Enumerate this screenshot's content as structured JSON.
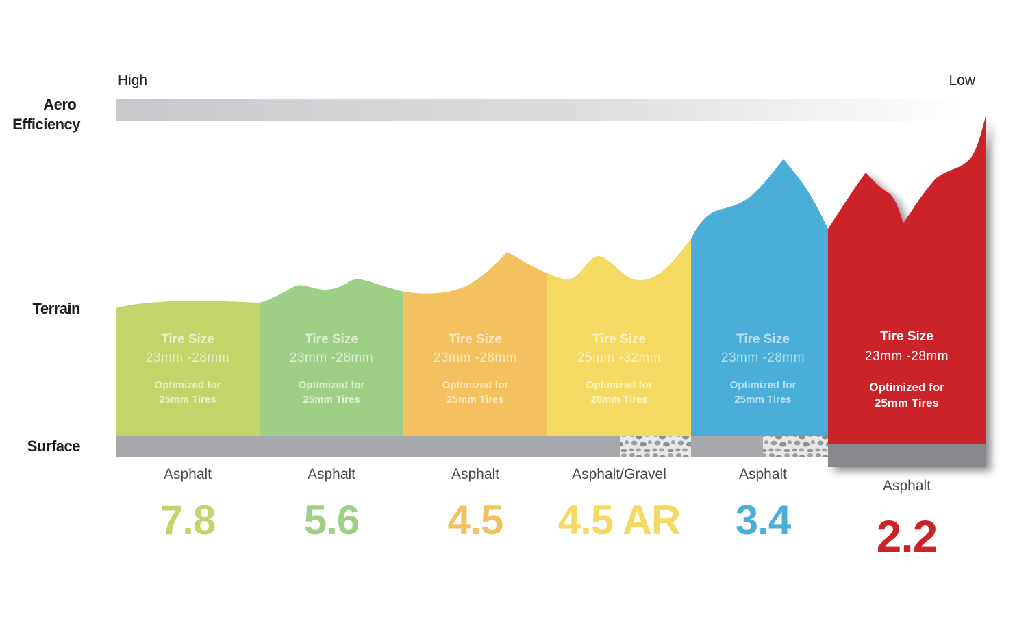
{
  "axis_labels": {
    "aero": [
      "Aero",
      "Efficiency"
    ],
    "terrain": "Terrain",
    "surface": "Surface"
  },
  "aero_scale": {
    "high": "High",
    "low": "Low"
  },
  "models": [
    {
      "id": "7.8",
      "color": "#c2d56a",
      "tire_title": "Tire Size",
      "tire_range": "23mm -28mm",
      "optimized": [
        "Optimized for",
        "25mm Tires"
      ],
      "surface": "Asphalt",
      "gravel": false
    },
    {
      "id": "5.6",
      "color": "#9ecf87",
      "tire_title": "Tire Size",
      "tire_range": "23mm -28mm",
      "optimized": [
        "Optimized for",
        "25mm Tires"
      ],
      "surface": "Asphalt",
      "gravel": false
    },
    {
      "id": "4.5",
      "color": "#f3c15e",
      "tire_title": "Tire Size",
      "tire_range": "23mm -28mm",
      "optimized": [
        "Optimized for",
        "25mm Tires"
      ],
      "surface": "Asphalt",
      "gravel": false
    },
    {
      "id": "4.5 AR",
      "color": "#f4da62",
      "tire_title": "Tire Size",
      "tire_range": "25mm -32mm",
      "optimized": [
        "Optimized for",
        "28mm Tires"
      ],
      "surface": "Asphalt/Gravel",
      "gravel": true
    },
    {
      "id": "3.4",
      "color": "#4aaed8",
      "tire_title": "Tire Size",
      "tire_range": "23mm -28mm",
      "optimized": [
        "Optimized for",
        "25mm Tires"
      ],
      "surface": "Asphalt",
      "gravel": true
    },
    {
      "id": "2.2",
      "color": "#cc2229",
      "tire_title": "Tire Size",
      "tire_range": "23mm -28mm",
      "optimized": [
        "Optimized for",
        "25mm Tires"
      ],
      "surface": "Asphalt",
      "gravel": false,
      "highlighted": true
    }
  ],
  "colors": {
    "surface_bar": "#a7a8ab",
    "surface_bar_highlight": "#87888b",
    "aero_bar_start": "#c9cacd",
    "aero_bar_end": "#ffffff",
    "text_dark": "#1e1e1e"
  }
}
